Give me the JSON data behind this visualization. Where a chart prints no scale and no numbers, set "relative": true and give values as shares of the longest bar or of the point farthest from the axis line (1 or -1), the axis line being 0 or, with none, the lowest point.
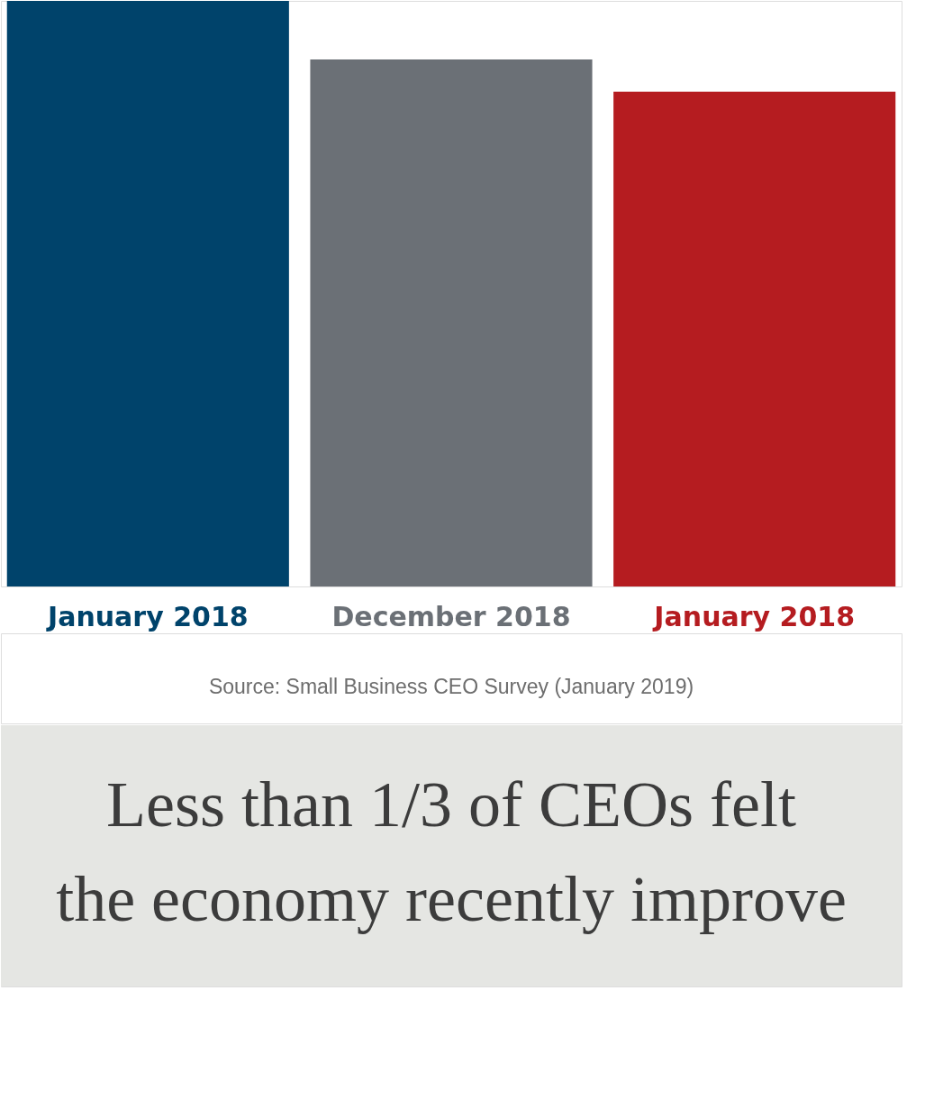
{
  "chart_data": {
    "type": "bar",
    "relative": true,
    "title": "Less than 1/3 of CEOs felt\nthe economy recently improve",
    "categories": [
      "January 2018",
      "December 2018",
      "January 2018"
    ],
    "values": [
      1,
      0.9,
      0.845
    ],
    "colors": [
      "#00436b",
      "#6b7076",
      "#b51c20"
    ],
    "annotations": [
      "Source: Small Business CEO Survey (January 2019)"
    ]
  }
}
